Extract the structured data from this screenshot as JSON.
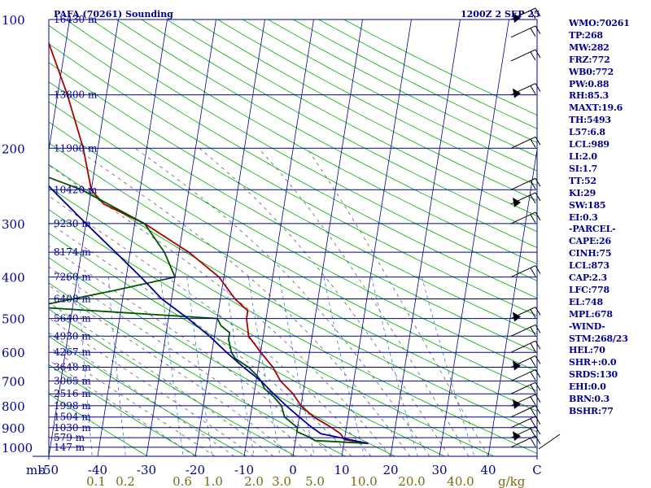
{
  "chart_data": {
    "type": "line",
    "chart_kind": "skew-T log-P sounding",
    "title": "PAFA (70261) Sounding",
    "time_label": "1200Z  2 SEP 25",
    "pressure_axis": {
      "unit_label": "mb",
      "ticks": [
        100,
        200,
        300,
        400,
        500,
        600,
        700,
        800,
        900,
        1000
      ],
      "range": [
        100,
        1050
      ],
      "scale": "log"
    },
    "temperature_axis": {
      "ticks": [
        -50,
        -40,
        -30,
        -20,
        -10,
        0,
        10,
        20,
        30,
        40
      ],
      "end_label": "C",
      "skew": true
    },
    "mixing_ratio_axis": {
      "ticks": [
        "0.1",
        "0.2",
        "0.6",
        "1.0",
        "2.0",
        "3.0",
        "5.0",
        "10.0",
        "20.0",
        "40.0"
      ],
      "unit_label": "g/kg"
    },
    "height_labels": [
      {
        "p": 100,
        "label": "16430 m"
      },
      {
        "p": 150,
        "label": "13800 m"
      },
      {
        "p": 200,
        "label": "11900 m"
      },
      {
        "p": 250,
        "label": "10420 m"
      },
      {
        "p": 300,
        "label": "9230 m"
      },
      {
        "p": 350,
        "label": "8174 m"
      },
      {
        "p": 400,
        "label": "7260 m"
      },
      {
        "p": 450,
        "label": "6408 m"
      },
      {
        "p": 500,
        "label": "5640 m"
      },
      {
        "p": 550,
        "label": "4930 m"
      },
      {
        "p": 600,
        "label": "4267 m"
      },
      {
        "p": 650,
        "label": "3648 m"
      },
      {
        "p": 700,
        "label": "3065 m"
      },
      {
        "p": 750,
        "label": "2516 m"
      },
      {
        "p": 800,
        "label": "1998 m"
      },
      {
        "p": 850,
        "label": "1504 m"
      },
      {
        "p": 900,
        "label": "1030 m"
      },
      {
        "p": 950,
        "label": "579 m"
      },
      {
        "p": 1000,
        "label": "147 m"
      }
    ],
    "series": [
      {
        "name": "temperature",
        "color": "#aa0000",
        "points": [
          [
            980,
            15
          ],
          [
            960,
            10
          ],
          [
            930,
            9
          ],
          [
            900,
            7
          ],
          [
            850,
            3
          ],
          [
            800,
            0
          ],
          [
            750,
            -2
          ],
          [
            700,
            -5
          ],
          [
            650,
            -7
          ],
          [
            600,
            -10
          ],
          [
            550,
            -13
          ],
          [
            500,
            -14
          ],
          [
            480,
            -14
          ],
          [
            450,
            -17
          ],
          [
            400,
            -21
          ],
          [
            350,
            -28
          ],
          [
            300,
            -38
          ],
          [
            270,
            -47
          ],
          [
            250,
            -50
          ],
          [
            200,
            -53
          ],
          [
            150,
            -58
          ],
          [
            100,
            -66
          ]
        ]
      },
      {
        "name": "dewpoint",
        "color": "#005500",
        "points": [
          [
            980,
            15
          ],
          [
            965,
            4
          ],
          [
            950,
            3
          ],
          [
            920,
            0
          ],
          [
            900,
            0
          ],
          [
            850,
            -3
          ],
          [
            800,
            -4
          ],
          [
            760,
            -6
          ],
          [
            730,
            -8
          ],
          [
            700,
            -9
          ],
          [
            680,
            -10
          ],
          [
            650,
            -12
          ],
          [
            620,
            -15
          ],
          [
            600,
            -16
          ],
          [
            560,
            -17
          ],
          [
            540,
            -17
          ],
          [
            520,
            -19
          ],
          [
            500,
            -20
          ],
          [
            470,
            -58
          ],
          [
            430,
            -42
          ],
          [
            400,
            -30
          ],
          [
            350,
            -33
          ],
          [
            300,
            -38
          ],
          [
            250,
            -52
          ],
          [
            200,
            -76
          ],
          [
            150,
            -86
          ],
          [
            100,
            -90
          ]
        ]
      },
      {
        "name": "parcel",
        "color": "#000099",
        "points": [
          [
            980,
            15
          ],
          [
            930,
            5
          ],
          [
            900,
            3
          ],
          [
            850,
            0
          ],
          [
            800,
            -3
          ],
          [
            750,
            -6
          ],
          [
            700,
            -9
          ],
          [
            650,
            -13
          ],
          [
            600,
            -17
          ],
          [
            550,
            -21
          ],
          [
            500,
            -26
          ],
          [
            450,
            -32
          ],
          [
            400,
            -37
          ],
          [
            350,
            -43
          ],
          [
            300,
            -50
          ],
          [
            250,
            -58
          ],
          [
            200,
            -67
          ],
          [
            150,
            -75
          ],
          [
            100,
            -84
          ]
        ]
      }
    ],
    "wind_barbs_shown": true
  },
  "stats": [
    "WMO:70261",
    "TP:268",
    "MW:282",
    "FRZ:772",
    "WB0:772",
    "PW:0.88",
    "RH:85.3",
    "MAXT:19.6",
    "TH:5493",
    "L57:6.8",
    "LCL:989",
    "LI:2.0",
    "SI:1.7",
    "TT:52",
    "KI:29",
    "SW:185",
    "EI:0.3",
    "-PARCEL-",
    "CAPE:26",
    "CINH:75",
    "LCL:873",
    "CAP:2.3",
    "LFC:778",
    "EL:748",
    "MPL:678",
    "-WIND-",
    "STM:268/23",
    "HEL:70",
    "SHR+:0.0",
    "SRDS:130",
    "EHI:0.0",
    "BRN:0.3",
    "BSHR:77"
  ],
  "colors": {
    "text": "#00008b",
    "isobar": "#00008b",
    "isotherm": "#00008b",
    "dry_adiabat": "#00aa00",
    "moist_adiabat": "#4d4d4d",
    "mixing_ratio": "#2f7fd0",
    "axis_tick": "#7a6a10"
  }
}
